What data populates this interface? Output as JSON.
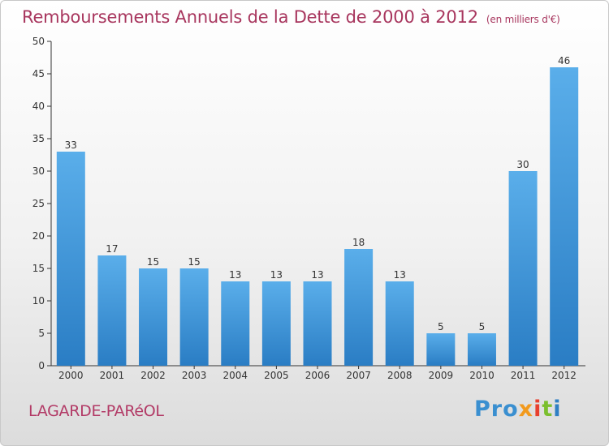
{
  "header": {
    "title": "Remboursements Annuels de la Dette de 2000 à 2012",
    "unit": "(en milliers d'€)"
  },
  "footer": {
    "commune": "LAGARDE-PARéOL",
    "logo": [
      "Pro",
      "x",
      "i",
      "t",
      "i"
    ]
  },
  "colors": {
    "bar_top": "#5aaeea",
    "bar_bottom": "#2a7dc4",
    "title": "#a8365e"
  },
  "chart_data": {
    "type": "bar",
    "title": "Remboursements Annuels de la Dette de 2000 à 2012",
    "subtitle": "(en milliers d'€)",
    "categories": [
      "2000",
      "2001",
      "2002",
      "2003",
      "2004",
      "2005",
      "2006",
      "2007",
      "2008",
      "2009",
      "2010",
      "2011",
      "2012"
    ],
    "values": [
      33,
      17,
      15,
      15,
      13,
      13,
      13,
      18,
      13,
      5,
      5,
      30,
      46
    ],
    "ylim": [
      0,
      50
    ],
    "yticks": [
      0,
      5,
      10,
      15,
      20,
      25,
      30,
      35,
      40,
      45,
      50
    ],
    "grid": false,
    "data_labels": true
  }
}
